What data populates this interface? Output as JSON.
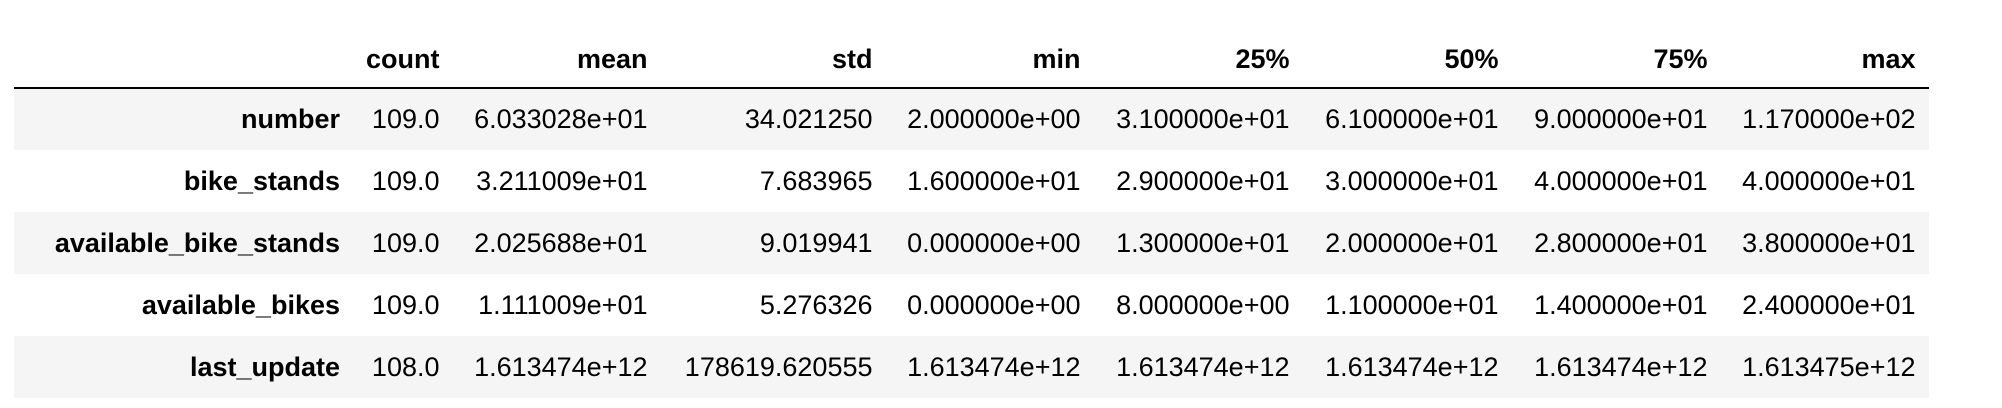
{
  "columns": [
    "count",
    "mean",
    "std",
    "min",
    "25%",
    "50%",
    "75%",
    "max"
  ],
  "rows": [
    {
      "index": "number",
      "values": [
        "109.0",
        "6.033028e+01",
        "34.021250",
        "2.000000e+00",
        "3.100000e+01",
        "6.100000e+01",
        "9.000000e+01",
        "1.170000e+02"
      ]
    },
    {
      "index": "bike_stands",
      "values": [
        "109.0",
        "3.211009e+01",
        "7.683965",
        "1.600000e+01",
        "2.900000e+01",
        "3.000000e+01",
        "4.000000e+01",
        "4.000000e+01"
      ]
    },
    {
      "index": "available_bike_stands",
      "values": [
        "109.0",
        "2.025688e+01",
        "9.019941",
        "0.000000e+00",
        "1.300000e+01",
        "2.000000e+01",
        "2.800000e+01",
        "3.800000e+01"
      ]
    },
    {
      "index": "available_bikes",
      "values": [
        "109.0",
        "1.111009e+01",
        "5.276326",
        "0.000000e+00",
        "8.000000e+00",
        "1.100000e+01",
        "1.400000e+01",
        "2.400000e+01"
      ]
    },
    {
      "index": "last_update",
      "values": [
        "108.0",
        "1.613474e+12",
        "178619.620555",
        "1.613474e+12",
        "1.613474e+12",
        "1.613474e+12",
        "1.613474e+12",
        "1.613475e+12"
      ]
    }
  ]
}
